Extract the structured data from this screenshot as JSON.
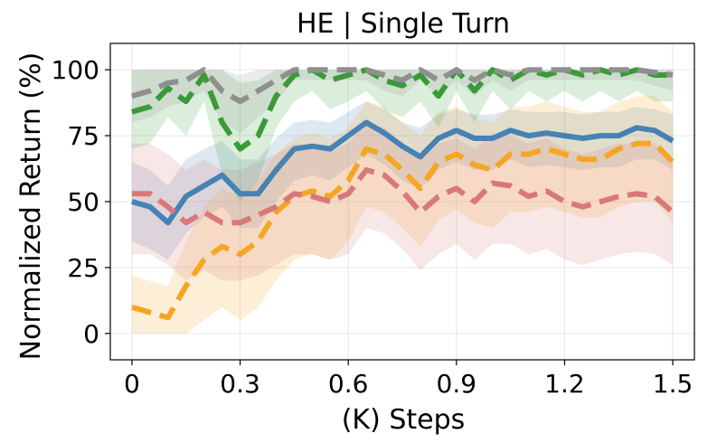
{
  "chart_data": {
    "type": "line",
    "title": "HE | Single Turn",
    "xlabel": "(K) Steps",
    "ylabel": "Normalized Return (%)",
    "xlim": [
      -0.06,
      1.56
    ],
    "ylim": [
      -10,
      110
    ],
    "xticks": [
      0,
      0.3,
      0.6,
      0.9,
      1.2,
      1.5
    ],
    "xtick_labels": [
      "0",
      "0.3",
      "0.6",
      "0.9",
      "1.2",
      "1.5"
    ],
    "yticks": [
      0,
      25,
      50,
      75,
      100
    ],
    "ytick_labels": [
      "0",
      "25",
      "50",
      "75",
      "100"
    ],
    "grid": true,
    "legend": "none",
    "x": [
      0,
      0.05,
      0.1,
      0.15,
      0.2,
      0.25,
      0.3,
      0.35,
      0.4,
      0.45,
      0.5,
      0.55,
      0.6,
      0.65,
      0.7,
      0.75,
      0.8,
      0.85,
      0.9,
      0.95,
      1.0,
      1.05,
      1.1,
      1.15,
      1.2,
      1.25,
      1.3,
      1.35,
      1.4,
      1.45,
      1.5
    ],
    "series": [
      {
        "color": "#4682b4",
        "style": "solid",
        "values": [
          50,
          48,
          42,
          52,
          56,
          60,
          53,
          53,
          62,
          70,
          71,
          70,
          75,
          80,
          76,
          71,
          67,
          74,
          77,
          74,
          74,
          77,
          75,
          76,
          75,
          74,
          75,
          75,
          78,
          77,
          73
        ],
        "lower": [
          35,
          32,
          28,
          38,
          44,
          48,
          40,
          40,
          50,
          58,
          60,
          58,
          63,
          68,
          64,
          58,
          55,
          62,
          65,
          62,
          62,
          66,
          63,
          64,
          63,
          62,
          63,
          63,
          66,
          66,
          62
        ],
        "upper": [
          65,
          62,
          56,
          66,
          70,
          73,
          66,
          66,
          74,
          80,
          81,
          80,
          84,
          88,
          85,
          80,
          78,
          83,
          85,
          83,
          83,
          85,
          84,
          84,
          84,
          83,
          84,
          84,
          86,
          85,
          83
        ]
      },
      {
        "color": "#f5a623",
        "style": "dashed",
        "values": [
          10,
          8,
          6,
          18,
          28,
          33,
          30,
          35,
          46,
          52,
          54,
          52,
          58,
          70,
          68,
          62,
          55,
          65,
          68,
          64,
          62,
          68,
          68,
          70,
          68,
          66,
          66,
          70,
          72,
          72,
          65
        ],
        "lower": [
          0,
          0,
          0,
          0,
          5,
          10,
          5,
          10,
          20,
          28,
          30,
          28,
          35,
          48,
          46,
          40,
          33,
          43,
          47,
          42,
          40,
          46,
          46,
          48,
          46,
          44,
          44,
          48,
          50,
          50,
          42
        ],
        "upper": [
          22,
          20,
          18,
          35,
          48,
          55,
          52,
          58,
          68,
          74,
          76,
          74,
          78,
          88,
          86,
          80,
          75,
          84,
          86,
          82,
          80,
          86,
          86,
          88,
          86,
          84,
          84,
          88,
          90,
          90,
          84
        ]
      },
      {
        "color": "#d9787a",
        "style": "dashed",
        "values": [
          53,
          53,
          48,
          42,
          46,
          42,
          42,
          45,
          48,
          53,
          52,
          50,
          53,
          62,
          60,
          54,
          46,
          52,
          55,
          50,
          57,
          56,
          52,
          54,
          50,
          48,
          50,
          52,
          53,
          52,
          46
        ],
        "lower": [
          30,
          30,
          26,
          20,
          24,
          20,
          20,
          22,
          26,
          30,
          30,
          28,
          30,
          40,
          38,
          32,
          24,
          30,
          34,
          28,
          34,
          34,
          30,
          32,
          28,
          26,
          28,
          30,
          31,
          30,
          26
        ],
        "upper": [
          72,
          72,
          68,
          62,
          66,
          62,
          62,
          65,
          68,
          72,
          71,
          69,
          72,
          80,
          78,
          72,
          66,
          72,
          74,
          70,
          76,
          75,
          72,
          74,
          70,
          68,
          70,
          72,
          72,
          72,
          66
        ]
      },
      {
        "color": "#3a9a3a",
        "style": "dashed",
        "values": [
          84,
          86,
          93,
          88,
          98,
          80,
          70,
          75,
          90,
          98,
          100,
          96,
          98,
          100,
          96,
          94,
          98,
          90,
          100,
          92,
          100,
          96,
          100,
          98,
          100,
          98,
          100,
          98,
          100,
          98,
          98
        ],
        "lower": [
          70,
          72,
          82,
          75,
          88,
          60,
          50,
          58,
          78,
          88,
          92,
          85,
          88,
          92,
          85,
          82,
          88,
          78,
          92,
          80,
          92,
          85,
          92,
          88,
          92,
          88,
          92,
          88,
          92,
          88,
          88
        ],
        "upper": [
          100,
          100,
          100,
          100,
          100,
          100,
          95,
          96,
          100,
          100,
          100,
          100,
          100,
          100,
          100,
          100,
          100,
          100,
          100,
          100,
          100,
          100,
          100,
          100,
          100,
          100,
          100,
          100,
          100,
          100,
          100
        ]
      },
      {
        "color": "#8f8f8f",
        "style": "dashed",
        "values": [
          90,
          92,
          95,
          96,
          100,
          92,
          88,
          92,
          96,
          100,
          100,
          100,
          100,
          100,
          98,
          96,
          100,
          96,
          100,
          96,
          100,
          98,
          100,
          100,
          100,
          100,
          100,
          100,
          100,
          99,
          98
        ],
        "lower": [
          80,
          82,
          86,
          88,
          92,
          80,
          76,
          82,
          88,
          96,
          96,
          96,
          96,
          96,
          92,
          90,
          96,
          90,
          96,
          90,
          96,
          92,
          96,
          96,
          96,
          96,
          96,
          96,
          96,
          94,
          92
        ],
        "upper": [
          100,
          100,
          100,
          100,
          100,
          100,
          98,
          100,
          100,
          100,
          100,
          100,
          100,
          100,
          100,
          100,
          100,
          100,
          100,
          100,
          100,
          100,
          100,
          100,
          100,
          100,
          100,
          100,
          100,
          100,
          100
        ]
      }
    ]
  }
}
